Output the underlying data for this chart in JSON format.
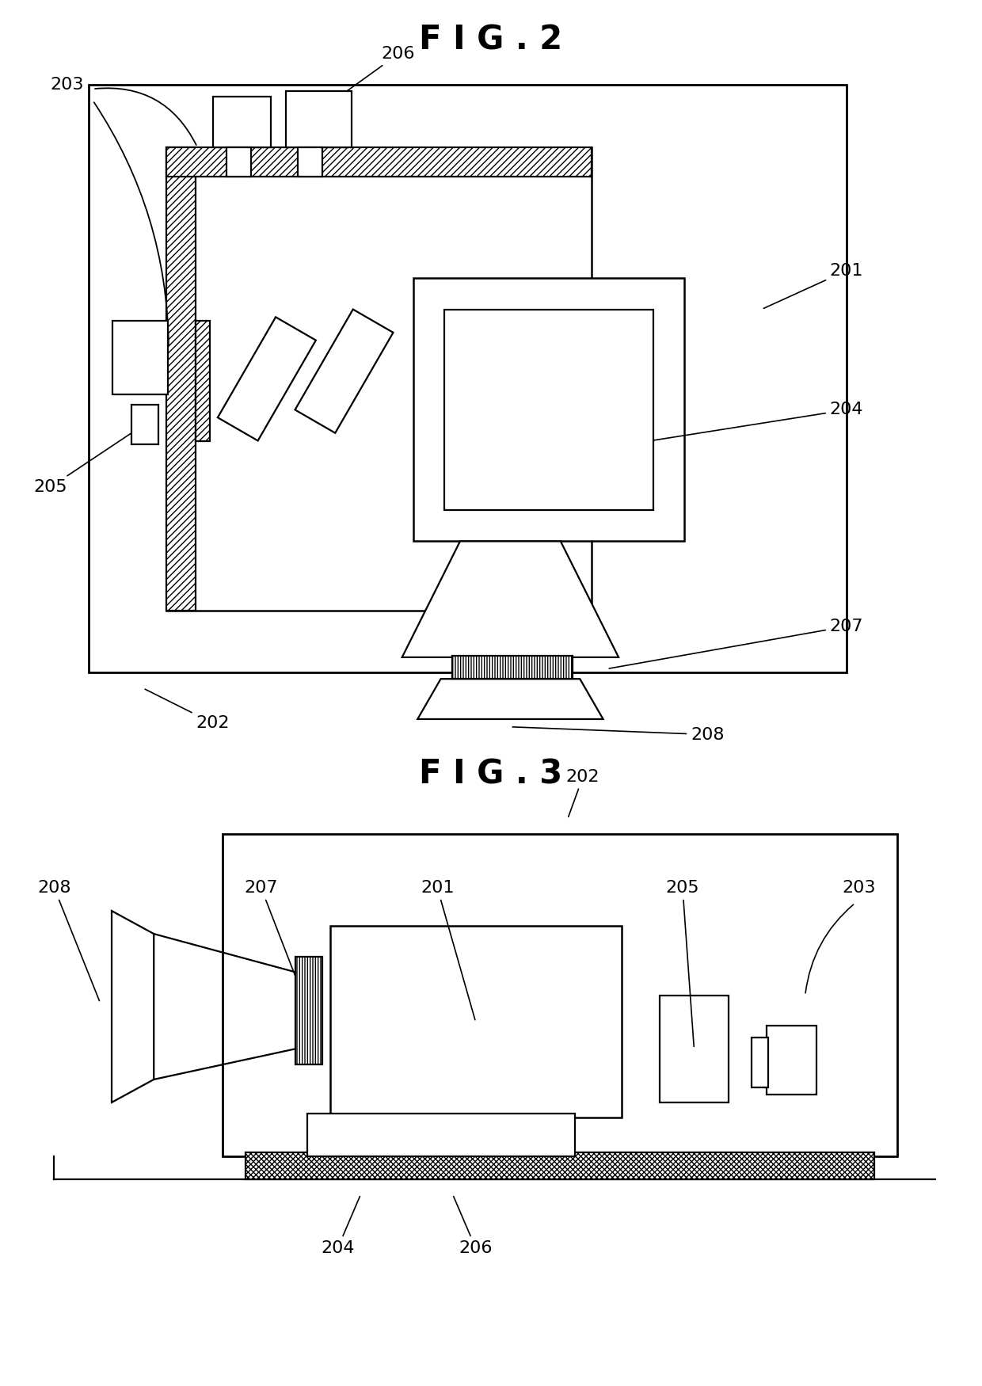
{
  "fig2_title": "F I G . 2",
  "fig3_title": "F I G . 3",
  "bg_color": "#ffffff",
  "line_color": "#000000",
  "label_fontsize": 16,
  "title_fontsize": 30
}
